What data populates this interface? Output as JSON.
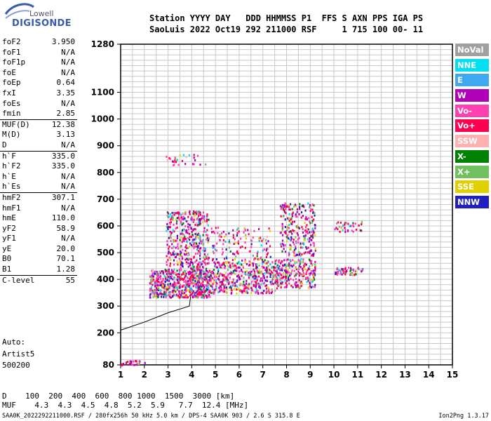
{
  "logo": {
    "line1": "Lowell",
    "line2": "DIGISONDE"
  },
  "header": {
    "line1": "Station YYYY DAY   DDD HHMMSS P1  FFS S AXN PPS IGA PS",
    "line2": "SaoLuis 2022 Oct19 292 211000 RSF     1 715 100 00- 11"
  },
  "params": [
    {
      "k": "foF2",
      "v": "3.950"
    },
    {
      "k": "foF1",
      "v": "N/A"
    },
    {
      "k": "foF1p",
      "v": "N/A"
    },
    {
      "k": "foE",
      "v": "N/A"
    },
    {
      "k": "foEp",
      "v": "0.64"
    },
    {
      "k": "fxI",
      "v": "3.35"
    },
    {
      "k": "foEs",
      "v": "N/A"
    },
    {
      "k": "fmin",
      "v": "2.85"
    },
    {
      "k": "MUF(D)",
      "v": "12.38",
      "sep": true
    },
    {
      "k": "M(D)",
      "v": "3.13"
    },
    {
      "k": "D",
      "v": "N/A"
    },
    {
      "k": "h`F",
      "v": "335.0",
      "sep": true
    },
    {
      "k": "h`F2",
      "v": "335.0"
    },
    {
      "k": "h`E",
      "v": "N/A"
    },
    {
      "k": "h`Es",
      "v": "N/A"
    },
    {
      "k": "hmF2",
      "v": "307.1",
      "sep": true
    },
    {
      "k": "hmF1",
      "v": "N/A"
    },
    {
      "k": "hmE",
      "v": "110.0"
    },
    {
      "k": "yF2",
      "v": "58.9"
    },
    {
      "k": "yF1",
      "v": "N/A"
    },
    {
      "k": "yE",
      "v": "20.0"
    },
    {
      "k": "B0",
      "v": "70.1"
    },
    {
      "k": "B1",
      "v": "1.28"
    },
    {
      "k": "C-level",
      "v": "55",
      "sep": true
    }
  ],
  "auto": {
    "line1": "Auto:",
    "line2": "Artist5",
    "line3": "500200"
  },
  "legend": [
    {
      "label": "NoVal",
      "color": "#a0a0a0"
    },
    {
      "label": "NNE",
      "color": "#00e0f0"
    },
    {
      "label": "E",
      "color": "#40a8f0"
    },
    {
      "label": "W",
      "color": "#b000b8"
    },
    {
      "label": "Vo-",
      "color": "#ff40b0"
    },
    {
      "label": "Vo+",
      "color": "#ff0050"
    },
    {
      "label": "SSW",
      "color": "#ffb0b0"
    },
    {
      "label": "X-",
      "color": "#008000"
    },
    {
      "label": "X+",
      "color": "#70c060"
    },
    {
      "label": "SSE",
      "color": "#e0d000"
    },
    {
      "label": "NNW",
      "color": "#2020c0"
    }
  ],
  "chart_data": {
    "type": "scatter",
    "title": "",
    "xlabel": "",
    "ylabel": "",
    "xlim": [
      1,
      15
    ],
    "ylim": [
      80,
      1280
    ],
    "xticks": [
      1,
      2,
      3,
      4,
      5,
      6,
      7,
      8,
      9,
      10,
      11,
      12,
      13,
      14,
      15
    ],
    "yticks": [
      80,
      200,
      300,
      400,
      500,
      600,
      700,
      800,
      900,
      1000,
      1100,
      1280
    ],
    "grid": true,
    "trace": [
      [
        1.0,
        210
      ],
      [
        2.0,
        240
      ],
      [
        3.0,
        275
      ],
      [
        3.9,
        300
      ],
      [
        3.95,
        335
      ]
    ],
    "clusters": [
      {
        "f": [
          2.2,
          4.8
        ],
        "h": [
          335,
          440
        ],
        "n": 650
      },
      {
        "f": [
          2.9,
          4.7
        ],
        "h": [
          440,
          660
        ],
        "n": 420
      },
      {
        "f": [
          4.8,
          7.5
        ],
        "h": [
          350,
          470
        ],
        "n": 420
      },
      {
        "f": [
          4.8,
          7.3
        ],
        "h": [
          470,
          600
        ],
        "n": 130
      },
      {
        "f": [
          7.5,
          9.2
        ],
        "h": [
          370,
          480
        ],
        "n": 260
      },
      {
        "f": [
          7.7,
          9.2
        ],
        "h": [
          490,
          690
        ],
        "n": 260
      },
      {
        "f": [
          10,
          11.2
        ],
        "h": [
          420,
          450
        ],
        "n": 60
      },
      {
        "f": [
          10,
          11.2
        ],
        "h": [
          580,
          620
        ],
        "n": 40
      },
      {
        "f": [
          2.9,
          4.6
        ],
        "h": [
          830,
          870
        ],
        "n": 30
      },
      {
        "f": [
          1.0,
          2.0
        ],
        "h": [
          82,
          100
        ],
        "n": 35
      }
    ],
    "bottom_table": {
      "d_label": "D",
      "d_values": [
        "100",
        "200",
        "400",
        "600",
        "800",
        "1000",
        "1500",
        "3000"
      ],
      "d_unit": "[km]",
      "muf_label": "MUF",
      "muf_values": [
        "4.3",
        "4.3",
        "4.5",
        "4.8",
        "5.2",
        "5.9",
        "7.7",
        "12.4"
      ],
      "muf_unit": "[MHz]"
    }
  },
  "footer": {
    "file_info": "SAA0K_2022292211000.RSF / 280fx256h 50 kHz 5.0 km / DPS-4 SAA0K 903 / 2.6 S 315.8 E",
    "version": "Ion2Png 1.3.17"
  }
}
